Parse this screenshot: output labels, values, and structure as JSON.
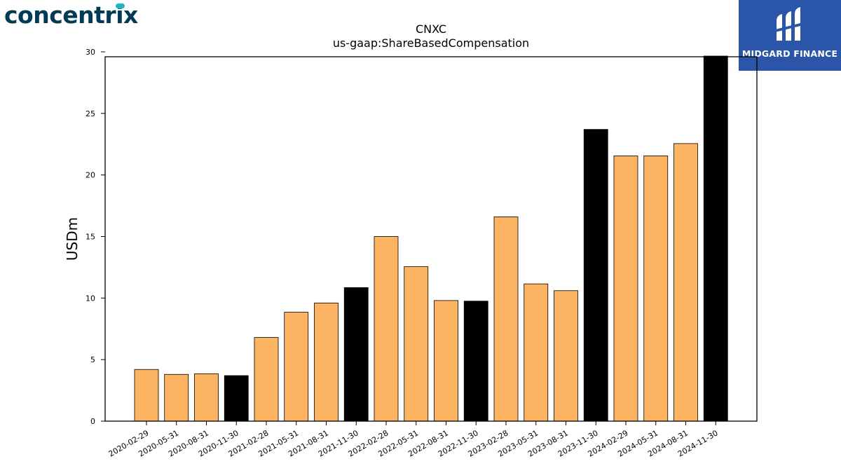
{
  "header": {
    "brand_logo_text": "concentrix",
    "partner_logo_text": "MIDGARD FINANCE"
  },
  "colors": {
    "bar_regular": "#fdb462",
    "bar_highlight": "#000000",
    "partner_bg": "#2b55a8",
    "brand_text": "#003a55",
    "brand_dot": "#1bb6c3"
  },
  "chart_data": {
    "type": "bar",
    "title": "CNXC",
    "subtitle": "us-gaap:ShareBasedCompensation",
    "xlabel": "",
    "ylabel": "USDm",
    "ylim": [
      0,
      30
    ],
    "yticks": [
      0,
      5,
      10,
      15,
      20,
      25,
      30
    ],
    "grid": false,
    "categories": [
      "2020-02-29",
      "2020-05-31",
      "2020-08-31",
      "2020-11-30",
      "2021-02-28",
      "2021-05-31",
      "2021-08-31",
      "2021-11-30",
      "2022-02-28",
      "2022-05-31",
      "2022-08-31",
      "2022-11-30",
      "2023-02-28",
      "2023-05-31",
      "2023-08-31",
      "2023-11-30",
      "2024-02-29",
      "2024-05-31",
      "2024-08-31",
      "2024-11-30"
    ],
    "values": [
      4.2,
      3.8,
      3.85,
      3.7,
      6.8,
      8.85,
      9.6,
      10.85,
      15.0,
      12.55,
      9.8,
      9.75,
      16.6,
      11.15,
      10.6,
      23.7,
      21.55,
      21.55,
      22.55,
      30.5
    ],
    "highlight": [
      false,
      false,
      false,
      true,
      false,
      false,
      false,
      true,
      false,
      false,
      false,
      true,
      false,
      false,
      false,
      true,
      false,
      false,
      false,
      true
    ]
  }
}
